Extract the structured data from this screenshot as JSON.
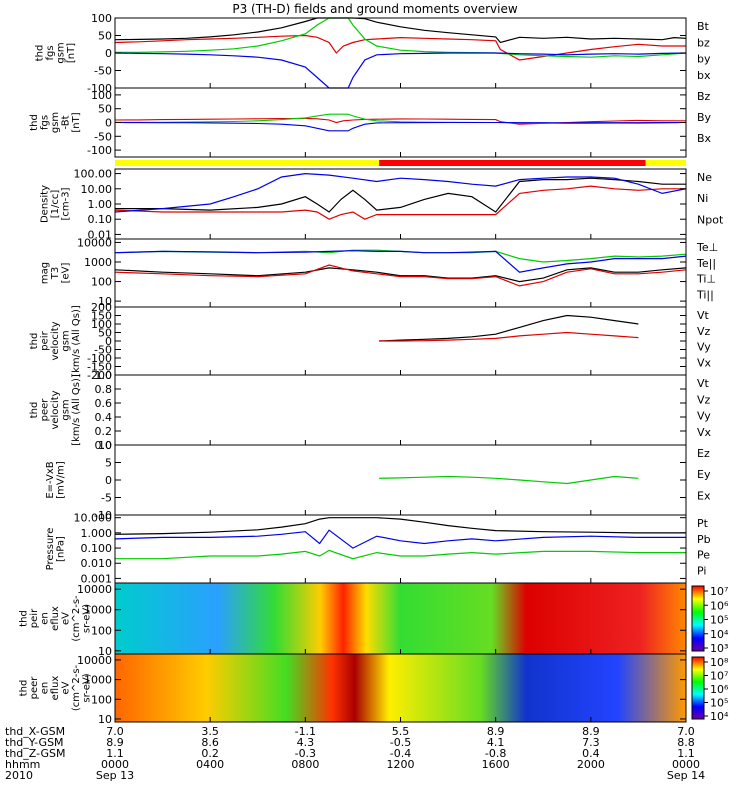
{
  "title": "P3 (TH-D) fields and ground moments overview",
  "colors": {
    "black": "#000000",
    "red": "#e00000",
    "green": "#00cc00",
    "blue": "#0000ee",
    "yellow": "#ffff00",
    "bar_red": "#ff0000"
  },
  "panels": [
    {
      "id": "fgs",
      "ylabel": [
        "thd",
        "fgs",
        "gsm",
        "[nT]"
      ],
      "yticks": [
        "100",
        "50",
        "0",
        "-50",
        "-100"
      ],
      "legend": [
        {
          "text": "Bt",
          "color": "black"
        },
        {
          "text": "bz",
          "color": "red"
        },
        {
          "text": "by",
          "color": "green"
        },
        {
          "text": "bx",
          "color": "blue"
        }
      ]
    },
    {
      "id": "fgs_rot",
      "ylabel": [
        "thd",
        "fgs",
        "gsm",
        "-Bt",
        "[nT]"
      ],
      "yticks": [
        "100",
        "50",
        "0",
        "-50",
        "-100"
      ],
      "legend": [
        {
          "text": "Bz",
          "color": "red"
        },
        {
          "text": "By",
          "color": "green"
        },
        {
          "text": "Bx",
          "color": "blue"
        }
      ]
    },
    {
      "id": "density",
      "ylabel": [
        "Density",
        "[1/cc]",
        "[cm-3]"
      ],
      "yticks": [
        "100.00",
        "10.00",
        "1.00",
        "0.10",
        "0.01"
      ],
      "legend": [
        {
          "text": "Ne",
          "color": "red"
        },
        {
          "text": "Ni",
          "color": "black"
        },
        {
          "text": "Npot",
          "color": "blue"
        }
      ]
    },
    {
      "id": "temp",
      "ylabel": [
        "mag",
        "T3",
        "[eV]"
      ],
      "yticks": [
        "10000",
        "1000",
        "100",
        "10"
      ],
      "legend": [
        {
          "text": "Te⊥",
          "color": "red"
        },
        {
          "text": "Te||",
          "color": "black"
        },
        {
          "text": "Ti⊥",
          "color": "blue"
        },
        {
          "text": "Ti||",
          "color": "green"
        }
      ]
    },
    {
      "id": "peir_vel",
      "ylabel": [
        "thd",
        "peir",
        "velocity",
        "gsm",
        "[km/s (All Qs)]"
      ],
      "yticks": [
        "200",
        "150",
        "100",
        "50",
        "0",
        "-50",
        "-100",
        "-150",
        "-200"
      ],
      "legend": [
        {
          "text": "Vt",
          "color": "black"
        },
        {
          "text": "Vz",
          "color": "red"
        },
        {
          "text": "Vy",
          "color": "green"
        },
        {
          "text": "Vx",
          "color": "blue"
        }
      ]
    },
    {
      "id": "peer_vel",
      "ylabel": [
        "thd",
        "peer",
        "velocity",
        "gsm",
        "[km/s (All Qs)]"
      ],
      "yticks": [
        "1.0",
        "0.8",
        "0.6",
        "0.4",
        "0.2",
        "0.0"
      ],
      "legend": [
        {
          "text": "Vt",
          "color": "black"
        },
        {
          "text": "Vz",
          "color": "red"
        },
        {
          "text": "Vy",
          "color": "green"
        },
        {
          "text": "Vx",
          "color": "blue"
        }
      ]
    },
    {
      "id": "efield",
      "ylabel": [
        "E=-VxB",
        "[mV/m]"
      ],
      "yticks": [
        "10",
        "5",
        "0",
        "-5",
        "-10"
      ],
      "legend": [
        {
          "text": "Ez",
          "color": "red"
        },
        {
          "text": "Ey",
          "color": "green"
        },
        {
          "text": "Ex",
          "color": "blue"
        }
      ]
    },
    {
      "id": "pressure",
      "ylabel": [
        "Pressure",
        "[nPa]"
      ],
      "yticks": [
        "10.000",
        "1.000",
        "0.100",
        "0.010",
        "0.001"
      ],
      "legend": [
        {
          "text": "Pt",
          "color": "black"
        },
        {
          "text": "Pb",
          "color": "red"
        },
        {
          "text": "Pe",
          "color": "green"
        },
        {
          "text": "Pi",
          "color": "blue"
        }
      ]
    },
    {
      "id": "peir_spec",
      "ylabel": [
        "thd",
        "peir",
        "en",
        "eflux",
        "eV",
        "(cm^2-s-",
        "sr-eV)"
      ],
      "yticks": [
        "10000",
        "1000",
        "100",
        "10"
      ],
      "cbar_ticks": [
        "10⁷",
        "10⁶",
        "10⁵",
        "10⁴",
        "10³"
      ]
    },
    {
      "id": "peer_spec",
      "ylabel": [
        "thd",
        "peer",
        "en",
        "eflux",
        "eV",
        "(cm^2-s-",
        "sr-eV)"
      ],
      "yticks": [
        "10000",
        "1000",
        "100",
        "10"
      ],
      "cbar_ticks": [
        "10⁸",
        "10⁷",
        "10⁶",
        "10⁵",
        "10⁴"
      ]
    }
  ],
  "chart_data": {
    "type": "line",
    "title": "P3 (TH-D) fields and ground moments overview",
    "x_hours": [
      0,
      4,
      8,
      12,
      16,
      20,
      24
    ],
    "x_hhmm": [
      "0000",
      "0400",
      "0800",
      "1200",
      "1600",
      "2000",
      "0000"
    ],
    "date_labels": {
      "start": "Sep 13",
      "end": "Sep 14",
      "year": "2010"
    },
    "ephemeris": {
      "thd_X-GSM": [
        "7.0",
        "3.5",
        "-1.1",
        "5.5",
        "8.9",
        "8.9",
        "7.0"
      ],
      "thd_Y-GSM": [
        "8.9",
        "8.6",
        "4.3",
        "-0.5",
        "4.1",
        "7.3",
        "8.8"
      ],
      "thd_Z-GSM": [
        "1.1",
        "0.2",
        "-0.3",
        "-0.4",
        "-0.8",
        "0.4",
        "1.1"
      ],
      "hhmm": [
        "0000",
        "0400",
        "0800",
        "1200",
        "1600",
        "2000",
        "0000"
      ]
    },
    "mode_bar": [
      {
        "start_h": 0,
        "end_h": 11.1,
        "color": "yellow"
      },
      {
        "start_h": 11.1,
        "end_h": 22.3,
        "color": "bar_red"
      },
      {
        "start_h": 22.3,
        "end_h": 24,
        "color": "yellow"
      }
    ],
    "series": {
      "Bt": {
        "panel": "fgs",
        "x": [
          0,
          1,
          2,
          3,
          4,
          5,
          6,
          7,
          8,
          8.5,
          9,
          9.3,
          9.6,
          10,
          10.5,
          11,
          12,
          13,
          14,
          15,
          16,
          16.2,
          17,
          18,
          19,
          20,
          21,
          22,
          23,
          23.5,
          24
        ],
        "y": [
          38,
          39,
          40,
          42,
          46,
          52,
          60,
          72,
          90,
          100,
          100,
          100,
          100,
          100,
          98,
          88,
          75,
          65,
          58,
          52,
          46,
          30,
          45,
          42,
          45,
          40,
          42,
          40,
          38,
          44,
          42
        ]
      },
      "bz": {
        "panel": "fgs",
        "x": [
          0,
          1,
          2,
          3,
          4,
          5,
          6,
          7,
          8,
          8.5,
          9,
          9.3,
          9.6,
          10,
          10.5,
          11,
          12,
          13,
          14,
          15,
          16,
          16.2,
          17,
          18,
          19,
          20,
          21,
          22,
          23,
          24
        ],
        "y": [
          30,
          32,
          35,
          38,
          40,
          42,
          45,
          48,
          50,
          45,
          30,
          0,
          20,
          30,
          38,
          40,
          44,
          42,
          40,
          38,
          35,
          10,
          -20,
          -10,
          0,
          10,
          18,
          25,
          20,
          20
        ]
      },
      "by": {
        "panel": "fgs",
        "x": [
          0,
          1,
          2,
          3,
          4,
          5,
          6,
          7,
          8,
          8.5,
          9,
          9.2,
          9.5,
          9.8,
          10,
          10.5,
          11,
          12,
          13,
          14,
          15,
          16,
          17,
          18,
          19,
          20,
          21,
          22,
          23,
          24
        ],
        "y": [
          2,
          2,
          3,
          5,
          8,
          12,
          20,
          35,
          55,
          80,
          100,
          100,
          100,
          100,
          80,
          40,
          20,
          8,
          4,
          2,
          1,
          0,
          -5,
          -8,
          -10,
          -12,
          -8,
          -10,
          -5,
          0
        ]
      },
      "bx": {
        "panel": "fgs",
        "x": [
          0,
          1,
          2,
          3,
          4,
          5,
          6,
          7,
          8,
          8.5,
          9,
          9.2,
          9.5,
          9.8,
          10,
          10.5,
          11,
          12,
          13,
          14,
          15,
          16,
          17,
          18,
          19,
          20,
          21,
          22,
          23,
          24
        ],
        "y": [
          0,
          -1,
          -2,
          -3,
          -5,
          -8,
          -12,
          -20,
          -40,
          -70,
          -100,
          -100,
          -100,
          -100,
          -70,
          -20,
          -5,
          -2,
          -1,
          0,
          0,
          0,
          -2,
          -3,
          -5,
          -3,
          -2,
          -3,
          -1,
          0
        ]
      },
      "Ni": {
        "panel": "density",
        "x": [
          0,
          2,
          4,
          6,
          7,
          8,
          8.5,
          9,
          9.5,
          10,
          10.5,
          11,
          12,
          13,
          14,
          15,
          16,
          17,
          18,
          19,
          20,
          21,
          22,
          23,
          24
        ],
        "y": [
          0.5,
          0.5,
          0.4,
          0.6,
          1.0,
          3,
          1,
          0.3,
          2,
          8,
          2,
          0.4,
          0.6,
          2,
          5,
          3,
          0.3,
          30,
          40,
          40,
          50,
          40,
          30,
          20,
          20
        ]
      },
      "Ne": {
        "panel": "density",
        "x": [
          0,
          2,
          4,
          6,
          7,
          8,
          8.5,
          9,
          9.5,
          10,
          10.5,
          11,
          12,
          13,
          14,
          15,
          16,
          17,
          18,
          19,
          20,
          21,
          22,
          23,
          24
        ],
        "y": [
          0.4,
          0.3,
          0.3,
          0.3,
          0.3,
          0.4,
          0.3,
          0.1,
          0.2,
          0.3,
          0.1,
          0.2,
          0.2,
          0.2,
          0.2,
          0.2,
          0.2,
          5,
          8,
          10,
          15,
          10,
          8,
          10,
          10
        ]
      },
      "Npot": {
        "panel": "density",
        "x": [
          0,
          2,
          4,
          5,
          6,
          7,
          8,
          9,
          10,
          11,
          12,
          13,
          14,
          15,
          16,
          17,
          18,
          19,
          20,
          21,
          22,
          23,
          24
        ],
        "y": [
          0.3,
          0.5,
          1,
          3,
          10,
          60,
          100,
          80,
          50,
          30,
          50,
          40,
          30,
          20,
          15,
          40,
          50,
          60,
          60,
          50,
          20,
          5,
          10
        ]
      },
      "Vt": {
        "panel": "peir_vel",
        "x": [
          11.1,
          12,
          13,
          14,
          15,
          16,
          17,
          18,
          19,
          20,
          21,
          22
        ],
        "y": [
          0,
          5,
          10,
          15,
          25,
          40,
          80,
          120,
          150,
          140,
          120,
          100
        ]
      },
      "Vz": {
        "panel": "peir_vel",
        "x": [
          11.1,
          12,
          13,
          14,
          15,
          16,
          17,
          18,
          19,
          20,
          21,
          22
        ],
        "y": [
          0,
          0,
          2,
          5,
          10,
          15,
          30,
          40,
          50,
          40,
          30,
          20
        ]
      },
      "Ey": {
        "panel": "efield",
        "x": [
          11.1,
          12,
          13,
          14,
          15,
          16,
          17,
          18,
          19,
          20,
          21,
          22
        ],
        "y": [
          0.5,
          0.6,
          0.8,
          1.0,
          0.8,
          0.5,
          0.0,
          -0.5,
          -1.0,
          0.0,
          1.0,
          0.5
        ]
      },
      "Pt": {
        "panel": "pressure",
        "x": [
          0,
          2,
          4,
          6,
          7,
          8,
          8.6,
          9,
          10,
          11,
          12,
          13,
          14,
          15,
          16,
          18,
          20,
          22,
          24
        ],
        "y": [
          0.8,
          0.9,
          1.1,
          1.6,
          2.4,
          4,
          8,
          10,
          10,
          10,
          8,
          5,
          3,
          2,
          1.4,
          1.2,
          1.1,
          1.0,
          1.0
        ]
      },
      "Pi": {
        "panel": "pressure",
        "x": [
          0,
          2,
          4,
          6,
          7,
          8,
          8.6,
          9,
          10,
          11,
          12,
          13,
          14,
          15,
          16,
          18,
          20,
          22,
          24
        ],
        "y": [
          0.4,
          0.5,
          0.5,
          0.6,
          0.8,
          1.2,
          0.2,
          1.5,
          0.1,
          0.6,
          0.3,
          0.2,
          0.3,
          0.4,
          0.3,
          0.5,
          0.6,
          0.5,
          0.5
        ]
      },
      "Pe": {
        "panel": "pressure",
        "x": [
          0,
          2,
          4,
          6,
          7,
          8,
          8.6,
          9,
          10,
          11,
          12,
          13,
          14,
          15,
          16,
          18,
          20,
          22,
          24
        ],
        "y": [
          0.02,
          0.02,
          0.03,
          0.03,
          0.04,
          0.06,
          0.03,
          0.07,
          0.02,
          0.05,
          0.03,
          0.03,
          0.04,
          0.05,
          0.04,
          0.06,
          0.06,
          0.05,
          0.05
        ]
      }
    }
  }
}
